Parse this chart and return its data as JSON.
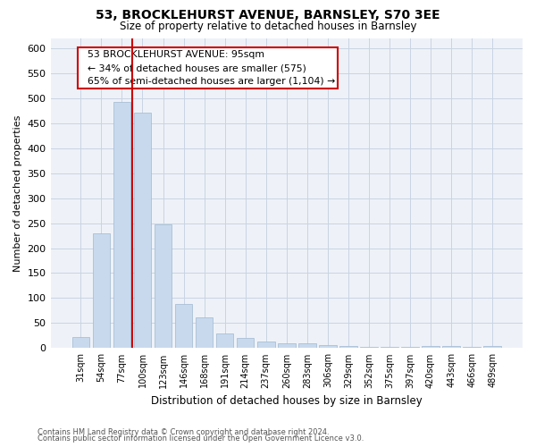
{
  "title": "53, BROCKLEHURST AVENUE, BARNSLEY, S70 3EE",
  "subtitle": "Size of property relative to detached houses in Barnsley",
  "xlabel": "Distribution of detached houses by size in Barnsley",
  "ylabel": "Number of detached properties",
  "categories": [
    "31sqm",
    "54sqm",
    "77sqm",
    "100sqm",
    "123sqm",
    "146sqm",
    "168sqm",
    "191sqm",
    "214sqm",
    "237sqm",
    "260sqm",
    "283sqm",
    "306sqm",
    "329sqm",
    "352sqm",
    "375sqm",
    "397sqm",
    "420sqm",
    "443sqm",
    "466sqm",
    "489sqm"
  ],
  "values": [
    23,
    230,
    492,
    471,
    247,
    88,
    62,
    30,
    20,
    13,
    9,
    9,
    7,
    4,
    3,
    2,
    2,
    5,
    5,
    3,
    4
  ],
  "bar_color": "#c8d9ed",
  "bar_edge_color": "#a0b8d0",
  "line_x_index": 2.5,
  "property_label": "53 BROCKLEHURST AVENUE: 95sqm",
  "smaller_pct": "34%",
  "smaller_count": 575,
  "larger_pct": "65%",
  "larger_count": "1,104",
  "annotation_box_color": "#ffffff",
  "annotation_box_edge": "#cc0000",
  "line_color": "#cc0000",
  "grid_color": "#c8d4e3",
  "footer1": "Contains HM Land Registry data © Crown copyright and database right 2024.",
  "footer2": "Contains public sector information licensed under the Open Government Licence v3.0.",
  "ylim": [
    0,
    620
  ],
  "yticks": [
    0,
    50,
    100,
    150,
    200,
    250,
    300,
    350,
    400,
    450,
    500,
    550,
    600
  ],
  "bg_color": "#eef2f8"
}
